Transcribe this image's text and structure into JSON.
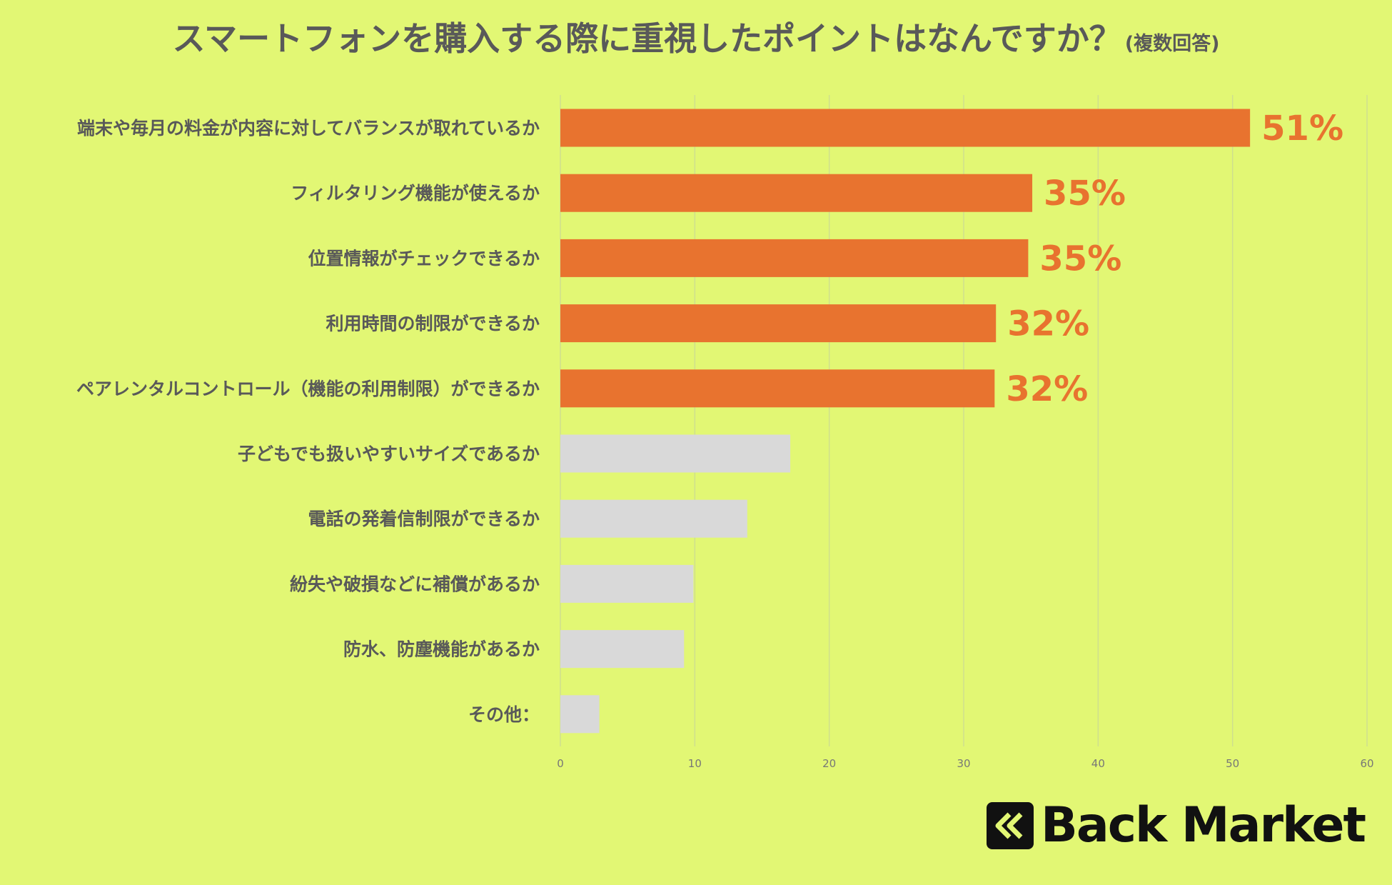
{
  "title": "スマートフォンを購入する際に重視したポイントはなんですか？",
  "subtitle": "(複数回答)",
  "brand": {
    "name": "Back Market",
    "icon": "back-market-chevron-logo-icon"
  },
  "colors": {
    "background": "#e2f774",
    "highlight": "#e8732f",
    "muted": "#d9d9d9",
    "text": "#595959"
  },
  "chart_data": {
    "type": "bar",
    "orientation": "horizontal",
    "categories": [
      "端末や毎月の料金が内容に対してバランスが取れているか",
      "フィルタリング機能が使えるか",
      "位置情報がチェックできるか",
      "利用時間の制限ができるか",
      "ペアレンタルコントロール（機能の利用制限）ができるか",
      "子どもでも扱いやすいサイズであるか",
      "電話の発着信制限ができるか",
      "紛失や破損などに補償があるか",
      "防水、防塵機能があるか",
      "その他："
    ],
    "values": [
      51.3,
      35.1,
      34.8,
      32.4,
      32.3,
      17.1,
      13.9,
      9.9,
      9.2,
      2.9
    ],
    "highlighted": [
      true,
      true,
      true,
      true,
      true,
      false,
      false,
      false,
      false,
      false
    ],
    "value_labels": [
      "51%",
      "35%",
      "35%",
      "32%",
      "32%",
      "",
      "",
      "",
      "",
      ""
    ],
    "xlim": [
      0,
      60
    ],
    "xticks": [
      "0",
      "10",
      "20",
      "30",
      "40",
      "50",
      "60"
    ],
    "grid": "vertical",
    "legend": "none"
  }
}
